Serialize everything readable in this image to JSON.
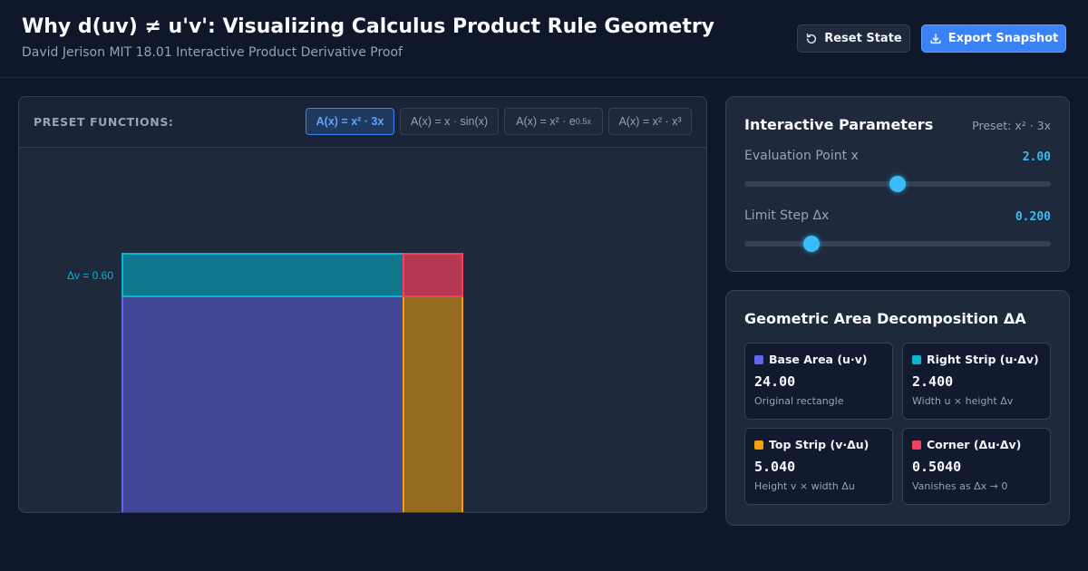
{
  "header": {
    "title": "Why d(uv) ≠ u'v': Visualizing Calculus Product Rule Geometry",
    "subtitle": "David Jerison MIT 18.01 Interactive Product Derivative Proof",
    "reset_label": "Reset State",
    "export_label": "Export Snapshot"
  },
  "presets": {
    "label": "PRESET FUNCTIONS:",
    "items": [
      {
        "label": "A(x) = x² · 3x",
        "active": true
      },
      {
        "label": "A(x) = x · sin(x)",
        "active": false
      },
      {
        "label_base": "A(x) = x² · e",
        "label_sup": "0.5x",
        "active": false
      },
      {
        "label": "A(x) = x² · x³",
        "active": false
      }
    ]
  },
  "plot": {
    "dv_label": "Δv = 0.60",
    "colors": {
      "base": "#6366f1",
      "right_strip": "#06b6d4",
      "top_strip": "#f59e0b",
      "corner": "#f43f5e"
    }
  },
  "params": {
    "title": "Interactive Parameters",
    "preset_tag": "Preset: x² · 3x",
    "x_label": "Evaluation Point x",
    "x_value": "2.00",
    "x_fraction": 0.5,
    "dx_label": "Limit Step Δx",
    "dx_value": "0.200",
    "dx_fraction": 0.2
  },
  "decomposition": {
    "title": "Geometric Area Decomposition ΔA",
    "cards": [
      {
        "name": "Base Area (u·v)",
        "value": "24.00",
        "desc": "Original rectangle",
        "color": "#6366f1"
      },
      {
        "name": "Right Strip (u·Δv)",
        "value": "2.400",
        "desc": "Width u × height Δv",
        "color": "#06b6d4"
      },
      {
        "name": "Top Strip (v·Δu)",
        "value": "5.040",
        "desc": "Height v × width Δu",
        "color": "#f59e0b"
      },
      {
        "name": "Corner (Δu·Δv)",
        "value": "0.5040",
        "desc": "Vanishes as Δx → 0",
        "color": "#f43f5e"
      }
    ]
  }
}
